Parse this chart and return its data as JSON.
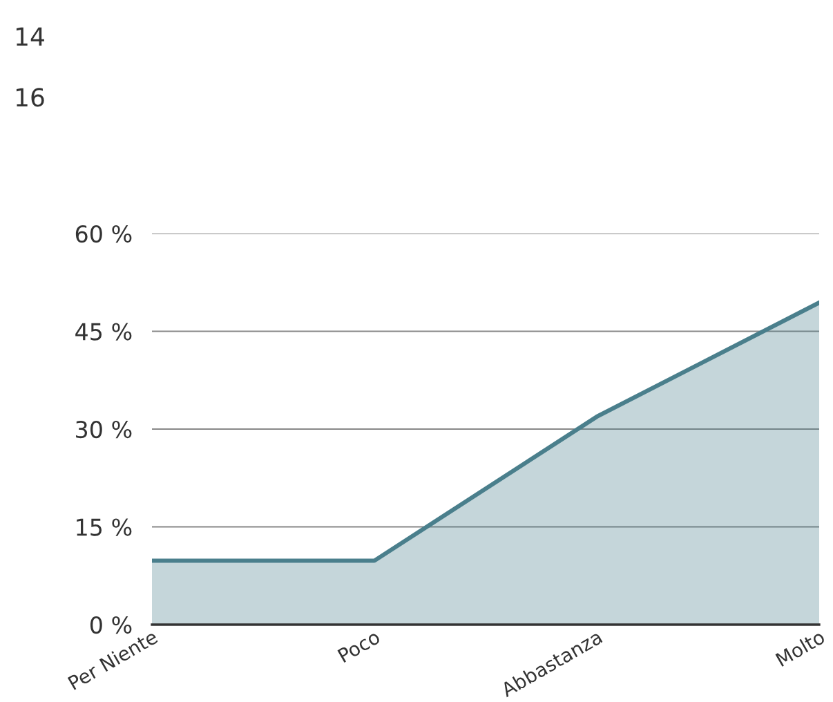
{
  "chart_data": {
    "type": "area",
    "annotations": [
      "14",
      "16"
    ],
    "categories": [
      "Per Niente",
      "Poco",
      "Abbastanza",
      "Molto"
    ],
    "series": [
      {
        "color": "#4a7f8c",
        "values": [
          9.8,
          9.8,
          31.9,
          49.4
        ]
      }
    ],
    "ylim": [
      0,
      60
    ],
    "yticks": [
      {
        "value": 0,
        "label": "0 %"
      },
      {
        "value": 15,
        "label": "15 %"
      },
      {
        "value": 30,
        "label": "30 %"
      },
      {
        "value": 45,
        "label": "45 %"
      },
      {
        "value": 60,
        "label": "60 %"
      }
    ],
    "grid": "y",
    "legend": false,
    "marker": "none",
    "line_style": "solid"
  }
}
